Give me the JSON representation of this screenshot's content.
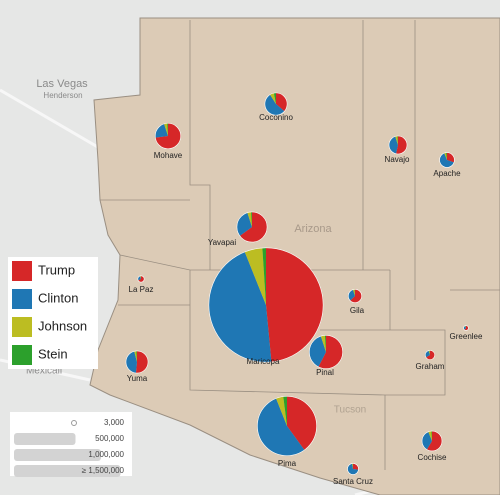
{
  "legend": {
    "series": [
      {
        "name": "Trump",
        "color": "#d62728"
      },
      {
        "name": "Clinton",
        "color": "#1f77b4"
      },
      {
        "name": "Johnson",
        "color": "#bcbd22"
      },
      {
        "name": "Stein",
        "color": "#2ca02c"
      }
    ]
  },
  "size_legend": [
    {
      "value": 3000,
      "label": "3,000"
    },
    {
      "value": 500000,
      "label": "500,000"
    },
    {
      "value": 1000000,
      "label": "1,000,000"
    },
    {
      "value": 1500000,
      "label": "≥ 1,500,000"
    }
  ],
  "place_labels": [
    "Las Vegas",
    "Henderson",
    "Mexicali",
    "Arizona",
    "Tucson"
  ],
  "counties": [
    {
      "name": "Mohave",
      "values": [
        73,
        22,
        4,
        1
      ],
      "total": 80000
    },
    {
      "name": "Coconino",
      "values": [
        36,
        54,
        6,
        3
      ],
      "total": 61000
    },
    {
      "name": "Navajo",
      "values": [
        53,
        41,
        4,
        1
      ],
      "total": 40000
    },
    {
      "name": "Apache",
      "values": [
        30,
        63,
        4,
        2
      ],
      "total": 27000
    },
    {
      "name": "Yavapai",
      "values": [
        65,
        30,
        4,
        1
      ],
      "total": 112000
    },
    {
      "name": "La Paz",
      "values": [
        68,
        26,
        4,
        1
      ],
      "total": 5000
    },
    {
      "name": "Maricopa",
      "values": [
        48,
        45,
        5,
        1
      ],
      "total": 1608000
    },
    {
      "name": "Gila",
      "values": [
        63,
        32,
        4,
        1
      ],
      "total": 22000
    },
    {
      "name": "Pinal",
      "values": [
        57,
        37,
        4,
        1
      ],
      "total": 137000
    },
    {
      "name": "Greenlee",
      "values": [
        61,
        31,
        5,
        1
      ],
      "total": 3000
    },
    {
      "name": "Graham",
      "values": [
        66,
        28,
        4,
        1
      ],
      "total": 11000
    },
    {
      "name": "Yuma",
      "values": [
        51,
        44,
        3,
        1
      ],
      "total": 60000
    },
    {
      "name": "Pima",
      "values": [
        40,
        54,
        4,
        2
      ],
      "total": 432000
    },
    {
      "name": "Santa Cruz",
      "values": [
        27,
        69,
        2,
        1
      ],
      "total": 15000
    },
    {
      "name": "Cochise",
      "values": [
        58,
        35,
        5,
        1
      ],
      "total": 49000
    }
  ]
}
